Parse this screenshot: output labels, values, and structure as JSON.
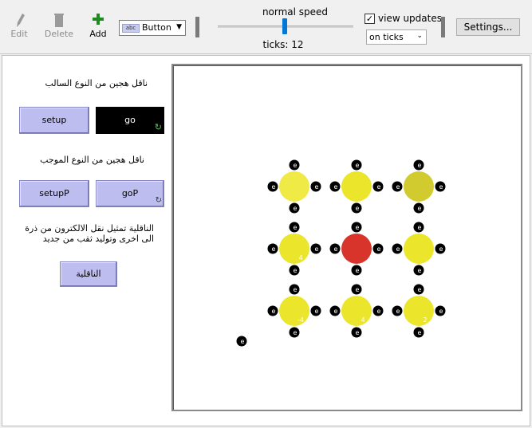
{
  "toolbar": {
    "edit": "Edit",
    "delete": "Delete",
    "add": "Add",
    "widget_type": "Button",
    "widget_mini": "abc",
    "speed_label": "normal speed",
    "speed_fraction": 0.5,
    "ticks": "ticks: 12",
    "view_updates": "view updates",
    "view_updates_checked": true,
    "update_mode": "on ticks",
    "settings": "Settings..."
  },
  "interface": {
    "note_negative": "ناقل هجين من النوع السالب",
    "note_positive": "ناقل هجين من النوع الموجب",
    "note_conduction": "الناقلية تمثيل نقل الالكترون من ذرة الى اخرى وتوليد ثقب من جديد",
    "btn_setup": "setup",
    "btn_go": "go",
    "btn_setupP": "setupP",
    "btn_goP": "goP",
    "btn_conduction": "الناقلية"
  },
  "world": {
    "electron_label": "e",
    "atoms": [
      {
        "row": 0,
        "col": 0,
        "color": "#f0ea46",
        "label": ""
      },
      {
        "row": 0,
        "col": 1,
        "color": "#ebe52c",
        "label": ""
      },
      {
        "row": 0,
        "col": 2,
        "color": "#d1cb30",
        "label": ""
      },
      {
        "row": 1,
        "col": 0,
        "color": "#ebe52c",
        "label": "4"
      },
      {
        "row": 1,
        "col": 1,
        "color": "#d9342b",
        "label": ""
      },
      {
        "row": 1,
        "col": 2,
        "color": "#ebe52c",
        "label": ""
      },
      {
        "row": 2,
        "col": 0,
        "color": "#ebe52c",
        "label": "-4"
      },
      {
        "row": 2,
        "col": 1,
        "color": "#ebe52c",
        "label": "4"
      },
      {
        "row": 2,
        "col": 2,
        "color": "#ebe52c",
        "label": "2"
      }
    ]
  },
  "colors": {
    "button": "#bdbdf0",
    "electron": "#000000"
  }
}
